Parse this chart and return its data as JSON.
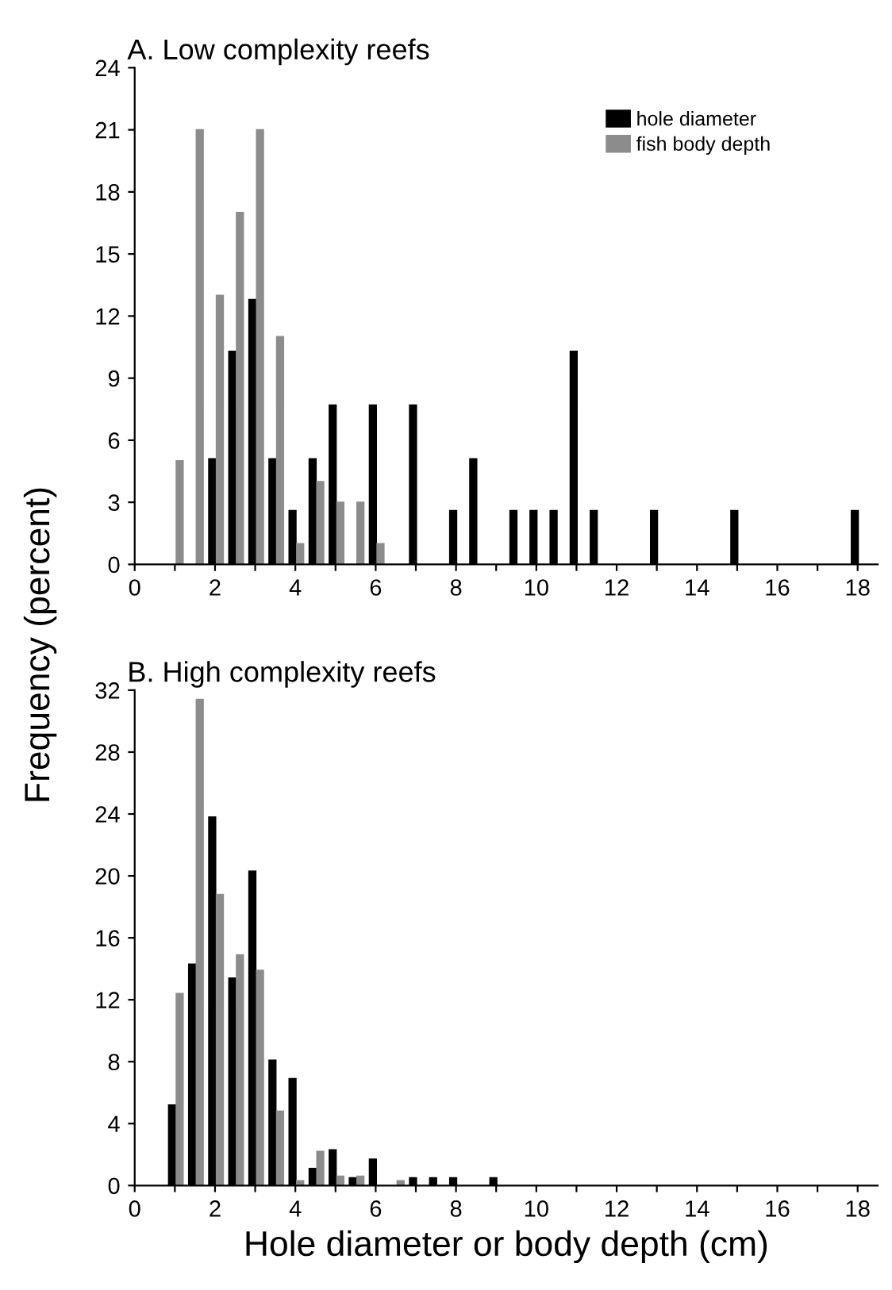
{
  "chart_data": [
    {
      "type": "bar",
      "title": "A. Low complexity reefs",
      "ylabel": "Frequency (percent)",
      "legend": "top right",
      "grid": false,
      "xlim": [
        0,
        18.5
      ],
      "ylim": [
        0,
        24
      ],
      "xticks": [
        0,
        {
          "value": 1,
          "label": null
        },
        2,
        {
          "value": 3,
          "label": null
        },
        4,
        {
          "value": 5,
          "label": null
        },
        6,
        {
          "value": 7,
          "label": null
        },
        8,
        {
          "value": 9,
          "label": null
        },
        10,
        {
          "value": 11,
          "label": null
        },
        12,
        {
          "value": 13,
          "label": null
        },
        14,
        {
          "value": 15,
          "label": null
        },
        16,
        {
          "value": 17,
          "label": null
        },
        18
      ],
      "yticks": [
        0,
        3,
        6,
        9,
        12,
        15,
        18,
        21,
        24
      ],
      "series": [
        {
          "name": "hole diameter",
          "color": "#000000",
          "x": [
            2.0,
            2.5,
            3.0,
            3.5,
            4.0,
            4.5,
            5.0,
            6.0,
            7.0,
            8.0,
            8.5,
            9.5,
            10.0,
            10.5,
            11.0,
            11.5,
            13.0,
            15.0,
            18.0
          ],
          "values": [
            5.1,
            10.3,
            12.8,
            5.1,
            2.6,
            5.1,
            7.7,
            7.7,
            7.7,
            2.6,
            5.1,
            2.6,
            2.6,
            2.6,
            10.3,
            2.6,
            2.6,
            2.6,
            2.6
          ]
        },
        {
          "name": "fish body depth",
          "color": "#8c8c8c",
          "x": [
            1.0,
            1.5,
            2.0,
            2.5,
            3.0,
            3.5,
            4.0,
            4.5,
            5.0,
            5.5,
            6.0
          ],
          "values": [
            5,
            21,
            13,
            17,
            21,
            11,
            1,
            4,
            3,
            3,
            1
          ]
        }
      ]
    },
    {
      "type": "bar",
      "title": "B. High complexity reefs",
      "xlabel": "Hole diameter or body depth (cm)",
      "grid": false,
      "xlim": [
        0,
        18.5
      ],
      "ylim": [
        0,
        32
      ],
      "xticks": [
        0,
        {
          "value": 1,
          "label": null
        },
        2,
        {
          "value": 3,
          "label": null
        },
        4,
        {
          "value": 5,
          "label": null
        },
        6,
        {
          "value": 7,
          "label": null
        },
        8,
        {
          "value": 9,
          "label": null
        },
        10,
        {
          "value": 11,
          "label": null
        },
        12,
        {
          "value": 13,
          "label": null
        },
        14,
        {
          "value": 15,
          "label": null
        },
        16,
        {
          "value": 17,
          "label": null
        },
        18
      ],
      "yticks": [
        0,
        4,
        8,
        12,
        16,
        20,
        24,
        28,
        32
      ],
      "series": [
        {
          "color": "#000000",
          "x": [
            1.0,
            1.5,
            2.0,
            2.5,
            3.0,
            3.5,
            4.0,
            4.5,
            5.0,
            5.5,
            6.0,
            7.0,
            7.5,
            8.0,
            9.0
          ],
          "values": [
            5.2,
            14.3,
            23.8,
            13.4,
            20.3,
            8.1,
            6.9,
            1.1,
            2.3,
            0.5,
            1.7,
            0.5,
            0.5,
            0.5,
            0.5
          ]
        },
        {
          "color": "#8c8c8c",
          "x": [
            1.0,
            1.5,
            2.0,
            2.5,
            3.0,
            3.5,
            4.0,
            4.5,
            5.0,
            5.5,
            6.5
          ],
          "values": [
            12.4,
            31.4,
            18.8,
            14.9,
            13.9,
            4.8,
            0.3,
            2.2,
            0.6,
            0.6,
            0.3
          ]
        }
      ]
    }
  ]
}
